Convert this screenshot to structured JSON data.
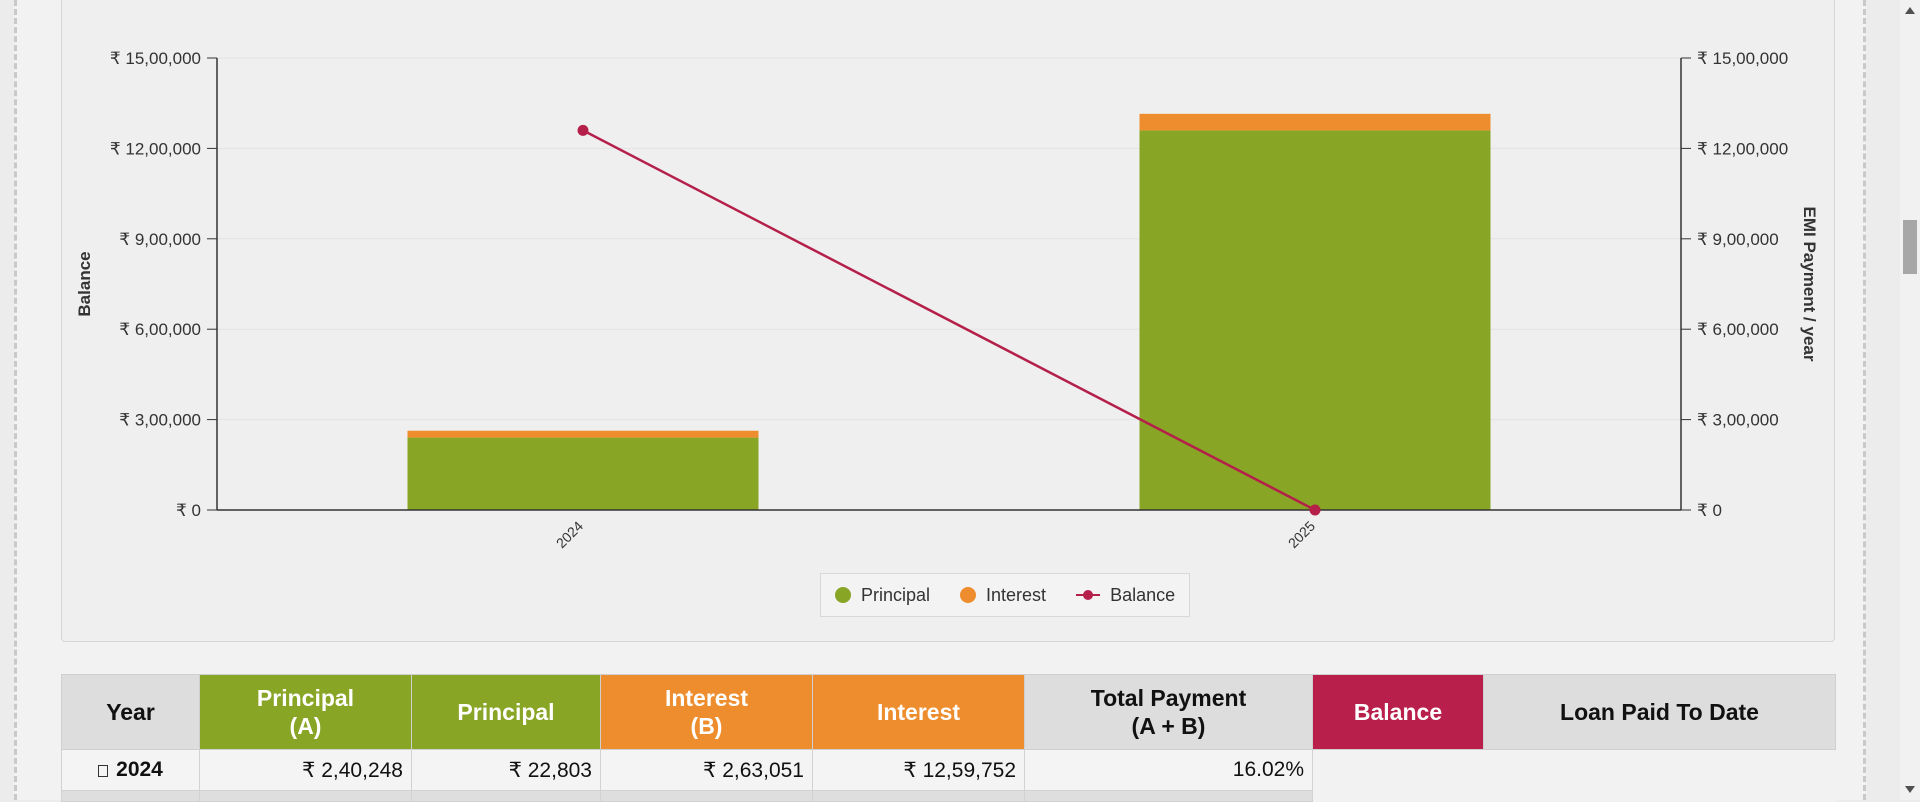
{
  "chart_data": {
    "type": "bar",
    "categories": [
      "2024",
      "2025"
    ],
    "series": [
      {
        "name": "Principal",
        "type": "bar",
        "stack": "payment",
        "axis": "right",
        "color": "#88a525",
        "values": [
          240248,
          1259752
        ]
      },
      {
        "name": "Interest",
        "type": "bar",
        "stack": "payment",
        "axis": "right",
        "color": "#ee8d2d",
        "values": [
          22803,
          55000
        ]
      },
      {
        "name": "Balance",
        "type": "line",
        "axis": "left",
        "color": "#b5204b",
        "values": [
          1259752,
          0
        ]
      }
    ],
    "ylabel": "Balance",
    "ylabel_right": "EMI Payment / year",
    "ylim": [
      0,
      1500000
    ],
    "yticks": [
      "₹ 0",
      "₹ 3,00,000",
      "₹ 6,00,000",
      "₹ 9,00,000",
      "₹ 12,00,000",
      "₹ 15,00,000"
    ],
    "grid": true,
    "legend": "bottom-center"
  },
  "legend": {
    "principal": "Principal",
    "interest": "Interest",
    "balance": "Balance"
  },
  "table": {
    "headers": {
      "year": "Year",
      "principal_a_1": "Principal",
      "principal_a_2": "(A)",
      "principal": "Principal",
      "interest_b_1": "Interest",
      "interest_b_2": "(B)",
      "interest": "Interest",
      "total_1": "Total Payment",
      "total_2": "(A + B)",
      "balance": "Balance",
      "paid_to_date": "Loan Paid To Date"
    },
    "rows": [
      {
        "year": "2024",
        "c1": "₹ 2,40,248",
        "c2": "₹ 22,803",
        "c3": "₹ 2,63,051",
        "c4": "₹ 12,59,752",
        "c5": "16.02%"
      }
    ]
  },
  "colors": {
    "principal": "#88a525",
    "interest": "#ee8d2d",
    "balance": "#b5204b"
  }
}
